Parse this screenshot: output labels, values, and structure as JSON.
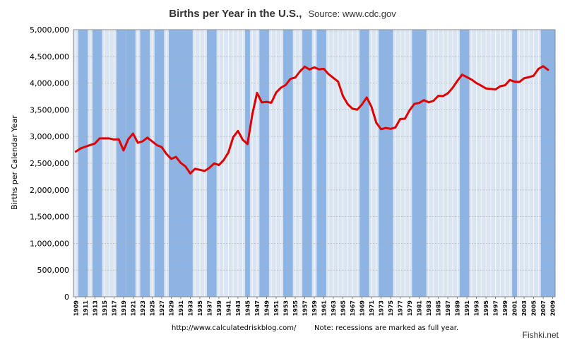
{
  "chart_data": {
    "type": "line",
    "title": "Births per Year in the U.S.,",
    "subtitle": "Source: www.cdc.gov",
    "ylabel": "Births per Calendar Year",
    "xlabel": "",
    "ylim": [
      0,
      5000000
    ],
    "xlim": [
      1909,
      2009
    ],
    "y_ticks": [
      "0",
      "500,000",
      "1,000,000",
      "1,500,000",
      "2,000,000",
      "2,500,000",
      "3,000,000",
      "3,500,000",
      "4,000,000",
      "4,500,000",
      "5,000,000"
    ],
    "y_tick_values": [
      0,
      500000,
      1000000,
      1500000,
      2000000,
      2500000,
      3000000,
      3500000,
      4000000,
      4500000,
      5000000
    ],
    "x_ticks": [
      "1909",
      "1911",
      "1913",
      "1915",
      "1917",
      "1919",
      "1921",
      "1923",
      "1925",
      "1927",
      "1929",
      "1931",
      "1933",
      "1935",
      "1937",
      "1939",
      "1941",
      "1943",
      "1945",
      "1947",
      "1949",
      "1951",
      "1953",
      "1955",
      "1957",
      "1959",
      "1961",
      "1963",
      "1965",
      "1967",
      "1969",
      "1971",
      "1973",
      "1975",
      "1977",
      "1979",
      "1981",
      "1983",
      "1985",
      "1987",
      "1989",
      "1991",
      "1993",
      "1995",
      "1997",
      "1999",
      "2001",
      "2003",
      "2005",
      "2007",
      "2009"
    ],
    "grid": true,
    "series": [
      {
        "color": "#dd0000",
        "x": [
          1909,
          1910,
          1911,
          1912,
          1913,
          1914,
          1915,
          1916,
          1917,
          1918,
          1919,
          1920,
          1921,
          1922,
          1923,
          1924,
          1925,
          1926,
          1927,
          1928,
          1929,
          1930,
          1931,
          1932,
          1933,
          1934,
          1935,
          1936,
          1937,
          1938,
          1939,
          1940,
          1941,
          1942,
          1943,
          1944,
          1945,
          1946,
          1947,
          1948,
          1949,
          1950,
          1951,
          1952,
          1953,
          1954,
          1955,
          1956,
          1957,
          1958,
          1959,
          1960,
          1961,
          1962,
          1963,
          1964,
          1965,
          1966,
          1967,
          1968,
          1969,
          1970,
          1971,
          1972,
          1973,
          1974,
          1975,
          1976,
          1977,
          1978,
          1979,
          1980,
          1981,
          1982,
          1983,
          1984,
          1985,
          1986,
          1987,
          1988,
          1989,
          1990,
          1991,
          1992,
          1993,
          1994,
          1995,
          1996,
          1997,
          1998,
          1999,
          2000,
          2001,
          2002,
          2003,
          2004,
          2005,
          2006,
          2007,
          2008
        ],
        "values": [
          2718000,
          2777000,
          2809000,
          2840000,
          2869000,
          2965000,
          2965000,
          2964000,
          2944000,
          2948000,
          2740000,
          2950000,
          3055000,
          2882000,
          2910000,
          2979000,
          2909000,
          2839000,
          2802000,
          2674000,
          2582000,
          2618000,
          2506000,
          2440000,
          2307000,
          2396000,
          2377000,
          2355000,
          2413000,
          2496000,
          2466000,
          2559000,
          2703000,
          2989000,
          3104000,
          2939000,
          2858000,
          3411000,
          3817000,
          3637000,
          3649000,
          3632000,
          3823000,
          3913000,
          3965000,
          4078000,
          4104000,
          4218000,
          4308000,
          4255000,
          4295000,
          4258000,
          4268000,
          4167000,
          4098000,
          4027000,
          3760000,
          3606000,
          3521000,
          3502000,
          3600000,
          3731000,
          3556000,
          3258000,
          3137000,
          3160000,
          3144000,
          3168000,
          3327000,
          3333000,
          3494000,
          3612000,
          3629000,
          3681000,
          3639000,
          3669000,
          3761000,
          3757000,
          3809000,
          3910000,
          4041000,
          4158000,
          4111000,
          4065000,
          4000000,
          3953000,
          3900000,
          3891000,
          3881000,
          3942000,
          3959000,
          4059000,
          4026000,
          4022000,
          4090000,
          4112000,
          4138000,
          4266000,
          4316000,
          4248000
        ]
      }
    ],
    "recessions": [
      [
        1910,
        1911
      ],
      [
        1913,
        1914
      ],
      [
        1918,
        1919
      ],
      [
        1920,
        1921
      ],
      [
        1923,
        1924
      ],
      [
        1926,
        1927
      ],
      [
        1929,
        1933
      ],
      [
        1937,
        1938
      ],
      [
        1945,
        1945
      ],
      [
        1948,
        1949
      ],
      [
        1953,
        1954
      ],
      [
        1957,
        1958
      ],
      [
        1960,
        1961
      ],
      [
        1969,
        1970
      ],
      [
        1973,
        1975
      ],
      [
        1980,
        1982
      ],
      [
        1990,
        1991
      ],
      [
        2001,
        2001
      ],
      [
        2007,
        2009
      ]
    ],
    "footer_url": "http://www.calculatedriskblog.com/",
    "footer_note": "Note:  recessions are marked as full year.",
    "watermark": "Fishki.net",
    "colors": {
      "line": "#dd0000",
      "recession_band": "#8db4e2",
      "plot_background": "#dbe5f1",
      "background": "#ffffff"
    }
  }
}
